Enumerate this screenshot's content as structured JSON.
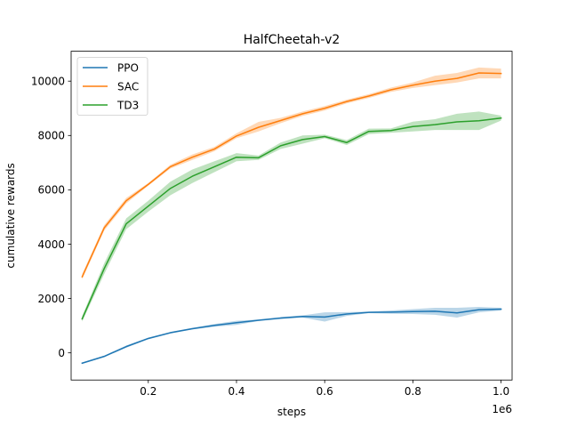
{
  "chart_data": {
    "type": "line",
    "title": "HalfCheetah-v2",
    "xlabel": "steps",
    "ylabel": "cumulative rewards",
    "x_offset_label": "1e6",
    "xlim": [
      0.025,
      1.025
    ],
    "ylim": [
      -1000,
      11100
    ],
    "xticks": [
      0.2,
      0.4,
      0.6,
      0.8,
      1.0
    ],
    "xtick_labels": [
      "0.2",
      "0.4",
      "0.6",
      "0.8",
      "1.0"
    ],
    "yticks": [
      0,
      2000,
      4000,
      6000,
      8000,
      10000
    ],
    "ytick_labels": [
      "0",
      "2000",
      "4000",
      "6000",
      "8000",
      "10000"
    ],
    "x": [
      0.05,
      0.1,
      0.15,
      0.2,
      0.25,
      0.3,
      0.35,
      0.4,
      0.45,
      0.5,
      0.55,
      0.6,
      0.65,
      0.7,
      0.75,
      0.8,
      0.85,
      0.9,
      0.95,
      1.0
    ],
    "legend_position": "upper-left",
    "grid": false,
    "series": [
      {
        "name": "PPO",
        "color": "#1f77b4",
        "values": [
          -380,
          -130,
          230,
          530,
          740,
          890,
          1010,
          1110,
          1200,
          1280,
          1340,
          1320,
          1430,
          1490,
          1500,
          1520,
          1530,
          1470,
          1590,
          1610
        ],
        "lower": [
          -400,
          -160,
          190,
          500,
          710,
          860,
          960,
          1030,
          1170,
          1240,
          1300,
          1150,
          1360,
          1460,
          1440,
          1430,
          1400,
          1300,
          1490,
          1560
        ],
        "upper": [
          -360,
          -100,
          270,
          560,
          770,
          920,
          1060,
          1180,
          1230,
          1320,
          1380,
          1490,
          1500,
          1520,
          1560,
          1610,
          1660,
          1660,
          1690,
          1660
        ]
      },
      {
        "name": "SAC",
        "color": "#ff7f0e",
        "values": [
          2800,
          4600,
          5600,
          6200,
          6850,
          7200,
          7500,
          7980,
          8300,
          8550,
          8800,
          9000,
          9250,
          9450,
          9680,
          9850,
          10000,
          10100,
          10300,
          10280
        ],
        "lower": [
          2700,
          4500,
          5500,
          6150,
          6780,
          7100,
          7420,
          7900,
          8150,
          8450,
          8720,
          8920,
          9180,
          9380,
          9600,
          9750,
          9850,
          9950,
          10100,
          10100
        ],
        "upper": [
          2900,
          4700,
          5700,
          6250,
          6920,
          7300,
          7580,
          8080,
          8500,
          8650,
          8880,
          9080,
          9320,
          9520,
          9760,
          9950,
          10200,
          10300,
          10500,
          10460
        ]
      },
      {
        "name": "TD3",
        "color": "#2ca02c",
        "values": [
          1250,
          3100,
          4750,
          5400,
          6050,
          6500,
          6850,
          7200,
          7180,
          7620,
          7850,
          7960,
          7740,
          8150,
          8180,
          8330,
          8400,
          8500,
          8540,
          8640
        ],
        "lower": [
          1150,
          2900,
          4550,
          5200,
          5800,
          6250,
          6650,
          7050,
          7100,
          7500,
          7700,
          7900,
          7650,
          8050,
          8100,
          8150,
          8200,
          8200,
          8200,
          8550
        ],
        "upper": [
          1350,
          3300,
          4950,
          5600,
          6300,
          6750,
          7050,
          7350,
          7260,
          7740,
          8000,
          8030,
          7830,
          8250,
          8260,
          8510,
          8600,
          8800,
          8880,
          8730
        ]
      }
    ]
  }
}
